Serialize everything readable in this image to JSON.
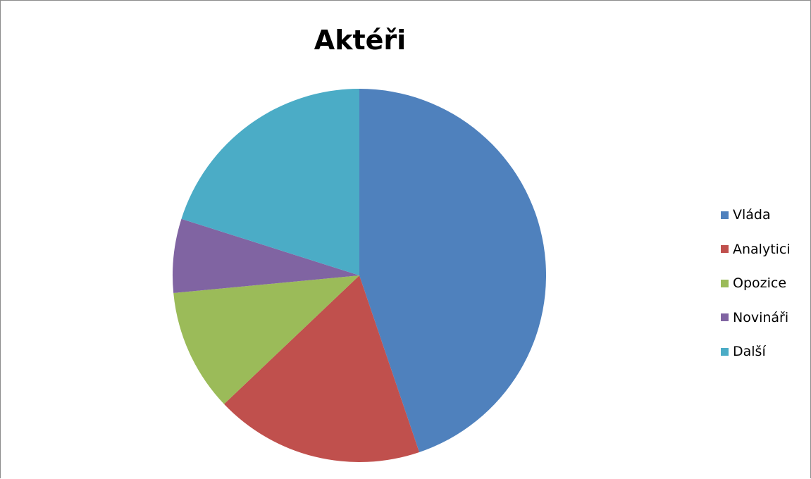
{
  "chart_data": {
    "type": "pie",
    "title": "Aktéři",
    "categories": [
      "Vláda",
      "Analytici",
      "Opozice",
      "Novináři",
      "Další"
    ],
    "values": [
      44.8,
      18.1,
      10.6,
      6.4,
      20.1
    ],
    "colors": [
      "#4F81BD",
      "#C0504D",
      "#9BBB59",
      "#8064A2",
      "#4BACC6"
    ],
    "start_angle_deg": 0,
    "direction": "clockwise",
    "legend_position": "right"
  }
}
